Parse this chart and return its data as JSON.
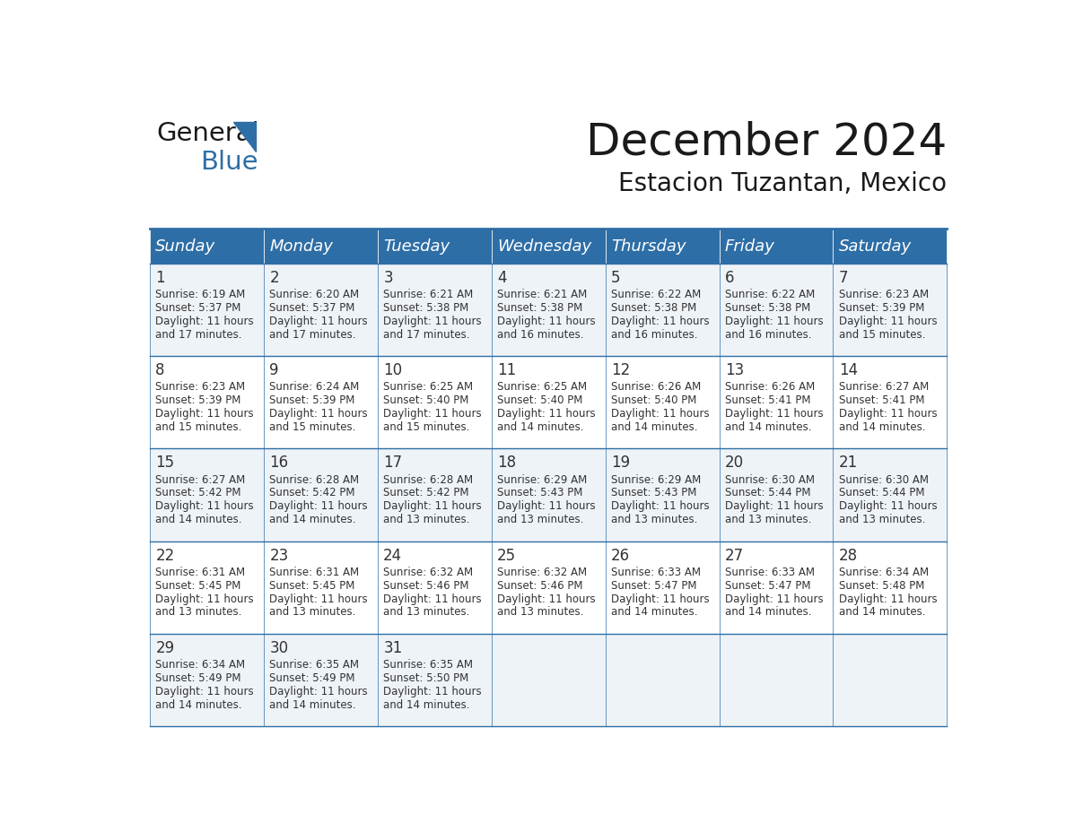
{
  "title": "December 2024",
  "subtitle": "Estacion Tuzantan, Mexico",
  "header_color": "#2E6EA6",
  "header_text_color": "#FFFFFF",
  "bg_color": "#FFFFFF",
  "row_bg_odd": "#EEF3F8",
  "row_bg_even": "#FFFFFF",
  "day_names": [
    "Sunday",
    "Monday",
    "Tuesday",
    "Wednesday",
    "Thursday",
    "Friday",
    "Saturday"
  ],
  "days": [
    {
      "day": 1,
      "col": 0,
      "row": 0,
      "sunrise": "6:19 AM",
      "sunset": "5:37 PM",
      "daylight": "11 hours and 17 minutes."
    },
    {
      "day": 2,
      "col": 1,
      "row": 0,
      "sunrise": "6:20 AM",
      "sunset": "5:37 PM",
      "daylight": "11 hours and 17 minutes."
    },
    {
      "day": 3,
      "col": 2,
      "row": 0,
      "sunrise": "6:21 AM",
      "sunset": "5:38 PM",
      "daylight": "11 hours and 17 minutes."
    },
    {
      "day": 4,
      "col": 3,
      "row": 0,
      "sunrise": "6:21 AM",
      "sunset": "5:38 PM",
      "daylight": "11 hours and 16 minutes."
    },
    {
      "day": 5,
      "col": 4,
      "row": 0,
      "sunrise": "6:22 AM",
      "sunset": "5:38 PM",
      "daylight": "11 hours and 16 minutes."
    },
    {
      "day": 6,
      "col": 5,
      "row": 0,
      "sunrise": "6:22 AM",
      "sunset": "5:38 PM",
      "daylight": "11 hours and 16 minutes."
    },
    {
      "day": 7,
      "col": 6,
      "row": 0,
      "sunrise": "6:23 AM",
      "sunset": "5:39 PM",
      "daylight": "11 hours and 15 minutes."
    },
    {
      "day": 8,
      "col": 0,
      "row": 1,
      "sunrise": "6:23 AM",
      "sunset": "5:39 PM",
      "daylight": "11 hours and 15 minutes."
    },
    {
      "day": 9,
      "col": 1,
      "row": 1,
      "sunrise": "6:24 AM",
      "sunset": "5:39 PM",
      "daylight": "11 hours and 15 minutes."
    },
    {
      "day": 10,
      "col": 2,
      "row": 1,
      "sunrise": "6:25 AM",
      "sunset": "5:40 PM",
      "daylight": "11 hours and 15 minutes."
    },
    {
      "day": 11,
      "col": 3,
      "row": 1,
      "sunrise": "6:25 AM",
      "sunset": "5:40 PM",
      "daylight": "11 hours and 14 minutes."
    },
    {
      "day": 12,
      "col": 4,
      "row": 1,
      "sunrise": "6:26 AM",
      "sunset": "5:40 PM",
      "daylight": "11 hours and 14 minutes."
    },
    {
      "day": 13,
      "col": 5,
      "row": 1,
      "sunrise": "6:26 AM",
      "sunset": "5:41 PM",
      "daylight": "11 hours and 14 minutes."
    },
    {
      "day": 14,
      "col": 6,
      "row": 1,
      "sunrise": "6:27 AM",
      "sunset": "5:41 PM",
      "daylight": "11 hours and 14 minutes."
    },
    {
      "day": 15,
      "col": 0,
      "row": 2,
      "sunrise": "6:27 AM",
      "sunset": "5:42 PM",
      "daylight": "11 hours and 14 minutes."
    },
    {
      "day": 16,
      "col": 1,
      "row": 2,
      "sunrise": "6:28 AM",
      "sunset": "5:42 PM",
      "daylight": "11 hours and 14 minutes."
    },
    {
      "day": 17,
      "col": 2,
      "row": 2,
      "sunrise": "6:28 AM",
      "sunset": "5:42 PM",
      "daylight": "11 hours and 13 minutes."
    },
    {
      "day": 18,
      "col": 3,
      "row": 2,
      "sunrise": "6:29 AM",
      "sunset": "5:43 PM",
      "daylight": "11 hours and 13 minutes."
    },
    {
      "day": 19,
      "col": 4,
      "row": 2,
      "sunrise": "6:29 AM",
      "sunset": "5:43 PM",
      "daylight": "11 hours and 13 minutes."
    },
    {
      "day": 20,
      "col": 5,
      "row": 2,
      "sunrise": "6:30 AM",
      "sunset": "5:44 PM",
      "daylight": "11 hours and 13 minutes."
    },
    {
      "day": 21,
      "col": 6,
      "row": 2,
      "sunrise": "6:30 AM",
      "sunset": "5:44 PM",
      "daylight": "11 hours and 13 minutes."
    },
    {
      "day": 22,
      "col": 0,
      "row": 3,
      "sunrise": "6:31 AM",
      "sunset": "5:45 PM",
      "daylight": "11 hours and 13 minutes."
    },
    {
      "day": 23,
      "col": 1,
      "row": 3,
      "sunrise": "6:31 AM",
      "sunset": "5:45 PM",
      "daylight": "11 hours and 13 minutes."
    },
    {
      "day": 24,
      "col": 2,
      "row": 3,
      "sunrise": "6:32 AM",
      "sunset": "5:46 PM",
      "daylight": "11 hours and 13 minutes."
    },
    {
      "day": 25,
      "col": 3,
      "row": 3,
      "sunrise": "6:32 AM",
      "sunset": "5:46 PM",
      "daylight": "11 hours and 13 minutes."
    },
    {
      "day": 26,
      "col": 4,
      "row": 3,
      "sunrise": "6:33 AM",
      "sunset": "5:47 PM",
      "daylight": "11 hours and 14 minutes."
    },
    {
      "day": 27,
      "col": 5,
      "row": 3,
      "sunrise": "6:33 AM",
      "sunset": "5:47 PM",
      "daylight": "11 hours and 14 minutes."
    },
    {
      "day": 28,
      "col": 6,
      "row": 3,
      "sunrise": "6:34 AM",
      "sunset": "5:48 PM",
      "daylight": "11 hours and 14 minutes."
    },
    {
      "day": 29,
      "col": 0,
      "row": 4,
      "sunrise": "6:34 AM",
      "sunset": "5:49 PM",
      "daylight": "11 hours and 14 minutes."
    },
    {
      "day": 30,
      "col": 1,
      "row": 4,
      "sunrise": "6:35 AM",
      "sunset": "5:49 PM",
      "daylight": "11 hours and 14 minutes."
    },
    {
      "day": 31,
      "col": 2,
      "row": 4,
      "sunrise": "6:35 AM",
      "sunset": "5:50 PM",
      "daylight": "11 hours and 14 minutes."
    }
  ],
  "logo_color_general": "#1a1a1a",
  "logo_color_blue": "#2E6EA6",
  "title_fontsize": 36,
  "subtitle_fontsize": 20,
  "header_fontsize": 13,
  "day_num_fontsize": 12,
  "cell_text_fontsize": 8.5,
  "num_rows": 5,
  "num_cols": 7
}
